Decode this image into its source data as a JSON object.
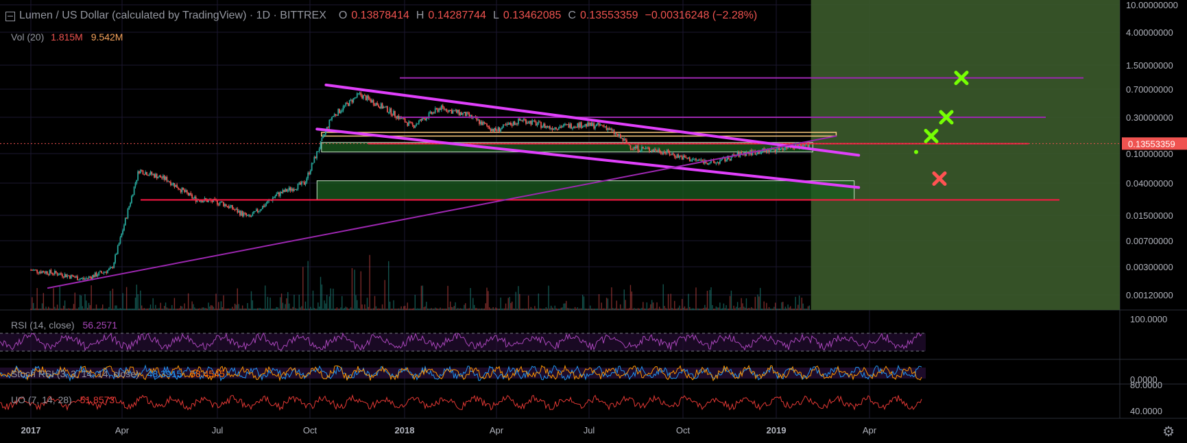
{
  "header": {
    "symbol": "Lumen / US Dollar (calculated by TradingView) · 1D · BITTREX",
    "open_label": "O",
    "open": "0.13878414",
    "high_label": "H",
    "high": "0.14287744",
    "low_label": "L",
    "low": "0.13462085",
    "close_label": "C",
    "close": "0.13553359",
    "change": "−0.00316248 (−2.28%)"
  },
  "volume": {
    "label": "Vol (20)",
    "value1": "1.815M",
    "value2": "9.542M"
  },
  "price_axis": {
    "ticks": [
      "10.00000000",
      "4.00000000",
      "1.50000000",
      "0.70000000",
      "0.30000000",
      "0.10000000",
      "0.04000000",
      "0.01500000",
      "0.00700000",
      "0.00300000",
      "0.00120000"
    ],
    "current_price": "0.13553359"
  },
  "time_axis": {
    "ticks": [
      "2017",
      "Apr",
      "Jul",
      "Oct",
      "2018",
      "Apr",
      "Jul",
      "Oct",
      "2019",
      "Apr"
    ]
  },
  "indicators": {
    "rsi": {
      "label": "RSI (14, close)",
      "value": "56.2571",
      "tick": "100.0000"
    },
    "stoch": {
      "label": "Stoch RSI (3, 3, 14, 14, close)",
      "value1": "48.3915",
      "value2": "58.4545",
      "tick_top": "0.0000",
      "tick_bottom": "80.0000"
    },
    "uo": {
      "label": "UO (7, 14, 28)",
      "value": "51.8573",
      "tick": "40.0000"
    }
  },
  "colors": {
    "background": "#000000",
    "grid": "#1c1730",
    "up": "#26a69a",
    "down": "#ef5350",
    "magenta": "#e040fb",
    "purple": "#9c27b0",
    "red_line": "#ff1744",
    "target_green": "#76ff03",
    "stop_red": "#ff5252",
    "projection_zone": "#3b5a2b"
  },
  "chart_data": {
    "type": "candlestick",
    "title": "Lumen / US Dollar (calculated by TradingView) · 1D · BITTREX",
    "scale": "log",
    "ylim": [
      0.0008,
      10
    ],
    "x_ticks": [
      "2017",
      "Apr",
      "Jul",
      "Oct",
      "2018",
      "Apr",
      "Jul",
      "Oct",
      "2019",
      "Apr"
    ],
    "last_price": 0.13553359,
    "ohlc_last": {
      "open": 0.13878414,
      "high": 0.14287744,
      "low": 0.13462085,
      "close": 0.13553359
    },
    "monthly_close": [
      {
        "x": "2017-01",
        "y": 0.0027
      },
      {
        "x": "2017-02",
        "y": 0.0024
      },
      {
        "x": "2017-03",
        "y": 0.002
      },
      {
        "x": "2017-04",
        "y": 0.0028
      },
      {
        "x": "2017-05",
        "y": 0.06
      },
      {
        "x": "2017-06",
        "y": 0.045
      },
      {
        "x": "2017-07",
        "y": 0.025
      },
      {
        "x": "2017-08",
        "y": 0.022
      },
      {
        "x": "2017-09",
        "y": 0.014
      },
      {
        "x": "2017-10",
        "y": 0.028
      },
      {
        "x": "2017-11",
        "y": 0.04
      },
      {
        "x": "2017-12",
        "y": 0.3
      },
      {
        "x": "2018-01",
        "y": 0.6
      },
      {
        "x": "2018-02",
        "y": 0.38
      },
      {
        "x": "2018-03",
        "y": 0.23
      },
      {
        "x": "2018-04",
        "y": 0.4
      },
      {
        "x": "2018-05",
        "y": 0.32
      },
      {
        "x": "2018-06",
        "y": 0.2
      },
      {
        "x": "2018-07",
        "y": 0.28
      },
      {
        "x": "2018-08",
        "y": 0.22
      },
      {
        "x": "2018-09",
        "y": 0.24
      },
      {
        "x": "2018-10",
        "y": 0.23
      },
      {
        "x": "2018-11",
        "y": 0.12
      },
      {
        "x": "2018-12",
        "y": 0.11
      },
      {
        "x": "2019-01",
        "y": 0.085
      },
      {
        "x": "2019-02",
        "y": 0.075
      },
      {
        "x": "2019-03",
        "y": 0.1
      },
      {
        "x": "2019-04",
        "y": 0.11
      },
      {
        "x": "2019-05",
        "y": 0.13
      }
    ],
    "horizontal_levels": [
      {
        "y": 1.0,
        "color": "purple"
      },
      {
        "y": 0.3,
        "color": "purple"
      },
      {
        "y": 0.135,
        "color": "red"
      },
      {
        "y": 0.024,
        "color": "red"
      }
    ],
    "trendlines": [
      {
        "from": {
          "x": "2017-11-25",
          "y": 0.8
        },
        "to": {
          "x": "2019-07-10",
          "y": 0.095
        },
        "color": "magenta"
      },
      {
        "from": {
          "x": "2017-11-15",
          "y": 0.21
        },
        "to": {
          "x": "2019-07-10",
          "y": 0.035
        },
        "color": "magenta"
      },
      {
        "from": {
          "x": "2017-01-20",
          "y": 0.0015
        },
        "to": {
          "x": "2019-06-15",
          "y": 0.17
        },
        "color": "purple"
      }
    ],
    "zones": [
      {
        "x0": "2017-11-20",
        "x1": "2019-06-15",
        "y0": 0.17,
        "y1": 0.19,
        "color": "orange-outline"
      },
      {
        "x0": "2017-11-20",
        "x1": "2019-05-20",
        "y0": 0.105,
        "y1": 0.14,
        "color": "green"
      },
      {
        "x0": "2017-11-15",
        "x1": "2019-07-05",
        "y0": 0.024,
        "y1": 0.043,
        "color": "green"
      }
    ],
    "markers": [
      {
        "x": "2019-05-25",
        "y": 1.0,
        "color": "green"
      },
      {
        "x": "2019-05-20",
        "y": 0.3,
        "color": "green"
      },
      {
        "x": "2019-05-15",
        "y": 0.17,
        "color": "green"
      },
      {
        "x": "2019-05-15",
        "y": 0.046,
        "color": "red"
      }
    ],
    "projection_zone": {
      "x0": "2019-05-18",
      "x1": "2019-10-30"
    },
    "indicators": {
      "rsi": {
        "latest": 56.2571
      },
      "stoch_rsi": {
        "k": 48.3915,
        "d": 58.4545
      },
      "uo": {
        "latest": 51.8573
      }
    }
  }
}
